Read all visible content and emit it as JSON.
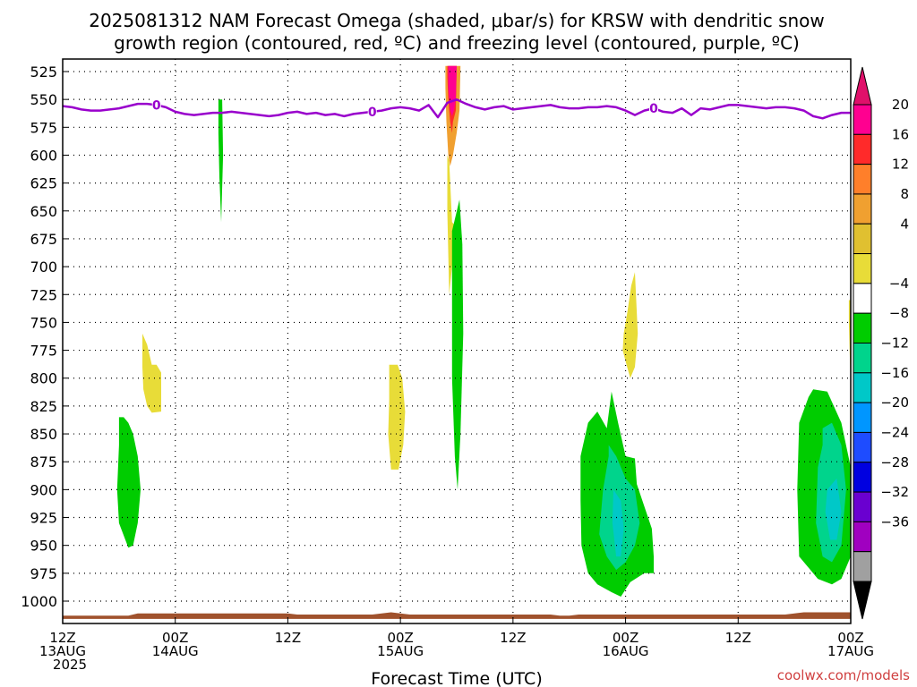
{
  "title_line1": "2025081312 NAM Forecast Omega (shaded, μbar/s) for KRSW with dendritic snow",
  "title_line2": "growth region (contoured, red, ºC) and freezing level (contoured, purple, ºC)",
  "credit": "coolwx.com/models",
  "chart_data": {
    "type": "heatmap",
    "title": "2025081312 NAM Forecast Omega (shaded, μbar/s) for KRSW with dendritic snow growth region (contoured, red, ºC) and freezing level (contoured, purple, ºC)",
    "xlabel": "Forecast Time (UTC)",
    "ylabel": "",
    "x_unit": "hours from 2025-08-13 12Z",
    "xlim": [
      0,
      84
    ],
    "ylim": [
      1000,
      525
    ],
    "x_ticks": [
      {
        "x": 0,
        "l1": "12Z",
        "l2": "13AUG",
        "l3": "2025"
      },
      {
        "x": 12,
        "l1": "00Z",
        "l2": "14AUG",
        "l3": ""
      },
      {
        "x": 24,
        "l1": "12Z",
        "l2": "",
        "l3": ""
      },
      {
        "x": 36,
        "l1": "00Z",
        "l2": "15AUG",
        "l3": ""
      },
      {
        "x": 48,
        "l1": "12Z",
        "l2": "",
        "l3": ""
      },
      {
        "x": 60,
        "l1": "00Z",
        "l2": "16AUG",
        "l3": ""
      },
      {
        "x": 72,
        "l1": "12Z",
        "l2": "",
        "l3": ""
      },
      {
        "x": 84,
        "l1": "00Z",
        "l2": "17AUG",
        "l3": ""
      }
    ],
    "y_ticks": [
      525,
      550,
      575,
      600,
      625,
      650,
      675,
      700,
      725,
      750,
      775,
      800,
      825,
      850,
      875,
      900,
      925,
      950,
      975,
      1000
    ],
    "grid": true,
    "colorbar": {
      "labels": [
        "20",
        "16",
        "12",
        "8",
        "4",
        "−4",
        "−8",
        "−12",
        "−16",
        "−20",
        "−24",
        "−28",
        "−32",
        "−36"
      ],
      "colors": [
        "#ff0090",
        "#ff2a2a",
        "#ff7f2a",
        "#f0a030",
        "#e0c030",
        "#e8dc38",
        "#ffffff",
        "#00cc00",
        "#00d48c",
        "#00c8c8",
        "#0096ff",
        "#1e4cff",
        "#0000e0",
        "#6a00d0",
        "#a000c0",
        "#a0a0a0"
      ],
      "over_color": "#e0106a",
      "under_color": "#000000"
    },
    "freezing_level": {
      "label": "0",
      "color": "#9900cc",
      "x": [
        0,
        1,
        2,
        3,
        4,
        5,
        6,
        7,
        8,
        9,
        10,
        11,
        12,
        13,
        14,
        15,
        16,
        17,
        18,
        19,
        20,
        21,
        22,
        23,
        24,
        25,
        26,
        27,
        28,
        29,
        30,
        31,
        32,
        33,
        34,
        35,
        36,
        37,
        38,
        39,
        40,
        41,
        42,
        43,
        44,
        45,
        46,
        47,
        48,
        49,
        50,
        51,
        52,
        53,
        54,
        55,
        56,
        57,
        58,
        59,
        60,
        61,
        62,
        63,
        64,
        65,
        66,
        67,
        68,
        69,
        70,
        71,
        72,
        73,
        74,
        75,
        76,
        77,
        78,
        79,
        80,
        81,
        82,
        83,
        84
      ],
      "y": [
        556,
        557,
        559,
        560,
        560,
        559,
        558,
        556,
        554,
        554,
        555,
        557,
        561,
        563,
        564,
        563,
        562,
        562,
        561,
        562,
        563,
        564,
        565,
        564,
        562,
        561,
        563,
        562,
        564,
        563,
        565,
        563,
        562,
        561,
        560,
        558,
        557,
        558,
        560,
        555,
        566,
        553,
        550,
        554,
        557,
        559,
        557,
        556,
        559,
        558,
        557,
        556,
        555,
        557,
        558,
        558,
        557,
        557,
        556,
        557,
        560,
        564,
        560,
        558,
        561,
        562,
        558,
        564,
        558,
        559,
        557,
        555,
        555,
        556,
        557,
        558,
        557,
        557,
        558,
        560,
        565,
        567,
        564,
        562,
        562
      ]
    },
    "shaded_regions": [
      {
        "omega": "4 to 8",
        "color": "#e8dc38",
        "x": [
          8.5,
          9.0,
          9.5,
          10.0,
          10.5,
          10.5,
          9.5,
          9.0,
          8.6,
          8.5
        ],
        "y": [
          760,
          770,
          788,
          788,
          795,
          830,
          831,
          825,
          810,
          790
        ]
      },
      {
        "omega": "4 to 8",
        "color": "#e8dc38",
        "x": [
          34.8,
          35.7,
          36.2,
          36.5,
          36.3,
          35.8,
          35.0,
          34.7,
          34.8
        ],
        "y": [
          788,
          788,
          800,
          830,
          860,
          882,
          882,
          850,
          820
        ]
      },
      {
        "omega": "4 to 8",
        "color": "#e8dc38",
        "x": [
          41.0,
          41.2,
          41.5,
          42.0,
          41.8,
          41.5,
          41.2,
          41.0
        ],
        "y": [
          600,
          605,
          660,
          665,
          680,
          700,
          725,
          650
        ]
      },
      {
        "omega": "4 to 8",
        "color": "#e8dc38",
        "x": [
          59.8,
          60.2,
          60.6,
          61.0,
          61.3,
          61.0,
          60.5,
          60.0,
          59.7,
          59.8
        ],
        "y": [
          760,
          740,
          717,
          705,
          760,
          790,
          800,
          785,
          775,
          760
        ]
      },
      {
        "omega": "4 to 8",
        "color": "#e8dc38",
        "x": [
          83.8,
          84.0,
          84.0,
          83.8
        ],
        "y": [
          730,
          730,
          810,
          750
        ]
      },
      {
        "omega": "8 to 12",
        "color": "#f0a030",
        "x": [
          40.8,
          42.4,
          42.3,
          42.0,
          41.6,
          41.3,
          41.1,
          40.9,
          40.8
        ],
        "y": [
          520,
          520,
          560,
          580,
          600,
          610,
          600,
          570,
          540
        ]
      },
      {
        "omega": "12 to 20",
        "color": "#ff2a2a",
        "x": [
          41.0,
          42.0,
          41.9,
          41.6,
          41.5,
          41.3,
          41.1,
          41.0
        ],
        "y": [
          520,
          520,
          560,
          570,
          580,
          570,
          550,
          530
        ]
      },
      {
        "omega": "> 20",
        "color": "#ff0090",
        "x": [
          41.1,
          42.0,
          41.9,
          41.7,
          41.5,
          41.3,
          41.1
        ],
        "y": [
          520,
          520,
          550,
          560,
          565,
          560,
          540
        ]
      },
      {
        "omega": "-4 to -8",
        "color": "#00cc00",
        "x": [
          16.6,
          17.0,
          17.1,
          16.9,
          16.7,
          16.6
        ],
        "y": [
          550,
          550,
          600,
          660,
          620,
          580
        ]
      },
      {
        "omega": "-4 to -8",
        "color": "#00cc00",
        "x": [
          41.5,
          42.3,
          42.6,
          42.7,
          42.4,
          42.1,
          41.8,
          41.5,
          41.5
        ],
        "y": [
          668,
          640,
          680,
          760,
          850,
          900,
          870,
          800,
          720
        ]
      },
      {
        "omega": "-4 to -8",
        "color": "#00cc00",
        "x": [
          6.0,
          6.5,
          7.0,
          7.5,
          8.0,
          8.3,
          8.0,
          7.5,
          7.0,
          6.0,
          5.8,
          6.0
        ],
        "y": [
          835,
          835,
          840,
          850,
          870,
          900,
          930,
          950,
          952,
          930,
          900,
          860
        ]
      },
      {
        "omega": "-4 to -8",
        "color": "#00cc00",
        "x": [
          55.2,
          56.0,
          57.0,
          58.0,
          58.5,
          59.2,
          60.0,
          61.0,
          61.2,
          62.8,
          63.0,
          63.0,
          62.0,
          60.5,
          59.5,
          58.5,
          57.0,
          56.0,
          55.3,
          55.2
        ],
        "y": [
          870,
          840,
          830,
          845,
          812,
          840,
          870,
          872,
          895,
          935,
          960,
          975,
          975,
          983,
          996,
          992,
          985,
          975,
          950,
          910
        ]
      },
      {
        "omega": "-4 to -8",
        "color": "#00cc00",
        "x": [
          78.5,
          79.5,
          80.0,
          81.5,
          83.0,
          84.0,
          84.0,
          83.0,
          82.0,
          80.5,
          79.5,
          78.5,
          78.3
        ],
        "y": [
          840,
          817,
          810,
          812,
          840,
          880,
          960,
          980,
          985,
          980,
          970,
          960,
          900
        ]
      },
      {
        "omega": "-8 to -12",
        "color": "#00d48c",
        "x": [
          58.2,
          59.0,
          60.0,
          61.0,
          61.5,
          61.0,
          60.0,
          59.0,
          58.0,
          57.2,
          57.6,
          58.2
        ],
        "y": [
          860,
          870,
          890,
          900,
          930,
          950,
          965,
          972,
          960,
          940,
          900,
          870
        ]
      },
      {
        "omega": "-8 to -12",
        "color": "#00d48c",
        "x": [
          81.0,
          82.0,
          83.0,
          83.5,
          83.0,
          82.0,
          81.0,
          80.3,
          80.5,
          81.0
        ],
        "y": [
          845,
          840,
          860,
          900,
          950,
          965,
          960,
          930,
          880,
          860
        ]
      },
      {
        "omega": "-12 to -16",
        "color": "#00c8c8",
        "x": [
          58.7,
          59.5,
          59.8,
          59.5,
          59.0,
          58.6
        ],
        "y": [
          900,
          910,
          935,
          960,
          960,
          930
        ]
      },
      {
        "omega": "-12 to -16",
        "color": "#00c8c8",
        "x": [
          81.5,
          82.5,
          83.0,
          82.5,
          81.8,
          81.3
        ],
        "y": [
          900,
          890,
          920,
          945,
          945,
          920
        ]
      }
    ],
    "ground": {
      "color": "#a0522d",
      "x": [
        0,
        7,
        8,
        24,
        25,
        33,
        34,
        35,
        36,
        37,
        52,
        53,
        54,
        55,
        77,
        78,
        79,
        80,
        84
      ],
      "p": [
        1013,
        1013,
        1011,
        1011,
        1012,
        1012,
        1011,
        1010,
        1011,
        1012,
        1012,
        1013,
        1013,
        1012,
        1012,
        1011,
        1010,
        1010,
        1010
      ]
    }
  }
}
